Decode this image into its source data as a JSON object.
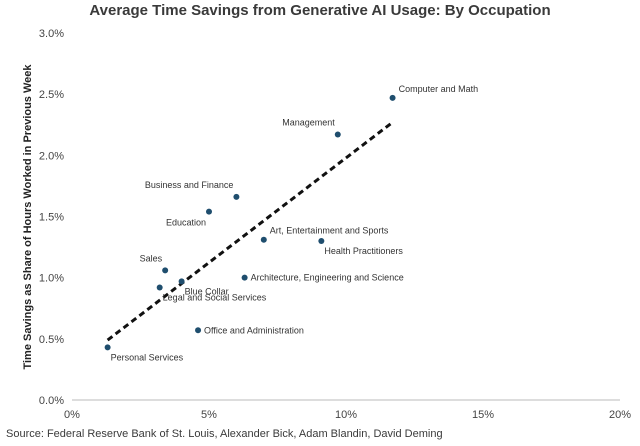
{
  "chart_data": {
    "type": "scatter",
    "title": "Average Time Savings from Generative AI Usage: By Occupation",
    "xlabel": "",
    "ylabel": "Time Savings as Share of Hours Worked in Previous Week",
    "xlim": [
      0,
      20
    ],
    "ylim": [
      0,
      3.0
    ],
    "x_ticks": [
      0,
      5,
      10,
      15,
      20
    ],
    "x_tick_labels": [
      "0%",
      "5%",
      "10%",
      "15%",
      "20%"
    ],
    "y_ticks": [
      0,
      0.5,
      1.0,
      1.5,
      2.0,
      2.5,
      3.0
    ],
    "y_tick_labels": [
      "0.0%",
      "0.5%",
      "1.0%",
      "1.5%",
      "2.0%",
      "2.5%",
      "3.0%"
    ],
    "grid": false,
    "point_color": "#1f4e6e",
    "points": [
      {
        "label": "Computer and Math",
        "x": 11.7,
        "y": 2.47,
        "pos": "ne"
      },
      {
        "label": "Management",
        "x": 9.7,
        "y": 2.17,
        "pos": "nw"
      },
      {
        "label": "Business and Finance",
        "x": 6.0,
        "y": 1.66,
        "pos": "nw"
      },
      {
        "label": "Education",
        "x": 5.0,
        "y": 1.54,
        "pos": "sw"
      },
      {
        "label": "Art, Entertainment and Sports",
        "x": 7.0,
        "y": 1.31,
        "pos": "ne"
      },
      {
        "label": "Health Practitioners",
        "x": 9.1,
        "y": 1.3,
        "pos": "se"
      },
      {
        "label": "Sales",
        "x": 3.4,
        "y": 1.06,
        "pos": "nw"
      },
      {
        "label": "Architecture, Engineering and Science",
        "x": 6.3,
        "y": 1.0,
        "pos": "e"
      },
      {
        "label": "Blue Collar",
        "x": 4.0,
        "y": 0.97,
        "pos": "se"
      },
      {
        "label": "Legal and Social Services",
        "x": 3.2,
        "y": 0.92,
        "pos": "se"
      },
      {
        "label": "Office and Administration",
        "x": 4.6,
        "y": 0.57,
        "pos": "e"
      },
      {
        "label": "Personal Services",
        "x": 1.3,
        "y": 0.43,
        "pos": "se"
      }
    ],
    "trendline": {
      "style": "dashed",
      "color": "#111111",
      "x": [
        1.3,
        11.7
      ],
      "y": [
        0.49,
        2.27
      ]
    }
  },
  "source": "Source: Federal Reserve Bank of St. Louis, Alexander Bick, Adam Blandin, David Deming"
}
